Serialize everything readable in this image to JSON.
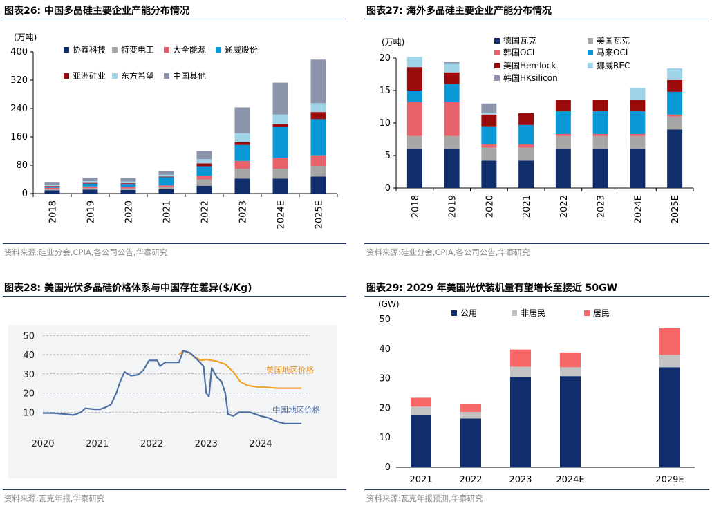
{
  "colors": {
    "navy": "#0f2e6b",
    "gray": "#a6a6a6",
    "salmon": "#e8626b",
    "blue": "#0a97d6",
    "darkred": "#9b0b0b",
    "lightblue": "#9fd4e8",
    "slate": "#8c94ac",
    "orange": "#f2a22a",
    "line_blue": "#4e6fa3"
  },
  "fig26": {
    "title": "图表26:  中国多晶硅主要企业产能分布情况",
    "source": "资料来源:硅业分会,CPIA,各公司公告,华泰研究",
    "chart_data": {
      "type": "bar",
      "stacked": true,
      "title": "中国多晶硅主要企业产能分布情况",
      "ylabel": "(万吨)",
      "ylim": [
        0,
        400
      ],
      "yticks": [
        "0",
        "80",
        "160",
        "240",
        "320",
        "400"
      ],
      "categories": [
        "2018",
        "2019",
        "2020",
        "2021",
        "2022",
        "2023",
        "2024E",
        "2025E"
      ],
      "series": [
        {
          "name": "协鑫科技",
          "color": "#0f2e6b",
          "values": [
            9,
            11,
            10,
            12,
            22,
            42,
            42,
            48
          ]
        },
        {
          "name": "特变电工",
          "color": "#a6a6a6",
          "values": [
            3,
            4,
            4,
            6,
            18,
            28,
            28,
            30
          ]
        },
        {
          "name": "大全能源",
          "color": "#e8626b",
          "values": [
            4,
            5,
            5,
            5,
            10,
            22,
            30,
            30
          ]
        },
        {
          "name": "通威股份",
          "color": "#0a97d6",
          "values": [
            3,
            8,
            8,
            23,
            27,
            45,
            88,
            102
          ]
        },
        {
          "name": "亚洲硅业",
          "color": "#9b0b0b",
          "values": [
            2,
            2,
            2,
            2,
            8,
            8,
            8,
            20
          ]
        },
        {
          "name": "东方希望",
          "color": "#9fd4e8",
          "values": [
            3,
            5,
            5,
            5,
            12,
            25,
            27,
            25
          ]
        },
        {
          "name": "中国其他",
          "color": "#8c94ac",
          "values": [
            7,
            10,
            10,
            10,
            23,
            73,
            90,
            123
          ]
        }
      ]
    }
  },
  "fig27": {
    "title": "图表27:  海外多晶硅主要企业产能分布情况",
    "source": "资料来源:硅业分会,CPIA,各公司公告,华泰研究",
    "chart_data": {
      "type": "bar",
      "stacked": true,
      "title": "海外多晶硅主要企业产能分布情况",
      "ylabel": "(万吨)",
      "ylim": [
        0,
        20
      ],
      "yticks": [
        "0",
        "5",
        "10",
        "15",
        "20"
      ],
      "categories": [
        "2018",
        "2019",
        "2020",
        "2021",
        "2022",
        "2023",
        "2024E",
        "2025E"
      ],
      "series": [
        {
          "name": "德国瓦克",
          "color": "#0f2e6b",
          "values": [
            6.0,
            6.0,
            4.2,
            4.2,
            6.0,
            6.0,
            6.0,
            9.0
          ]
        },
        {
          "name": "美国瓦克",
          "color": "#a6a6a6",
          "values": [
            2.0,
            2.0,
            2.0,
            2.0,
            2.0,
            2.0,
            2.0,
            2.0
          ]
        },
        {
          "name": "韩国OCI",
          "color": "#e8626b",
          "values": [
            5.2,
            5.2,
            0.5,
            0.5,
            0.3,
            0.3,
            0.3,
            0.3
          ]
        },
        {
          "name": "马来OCI",
          "color": "#0a97d6",
          "values": [
            1.8,
            2.8,
            2.8,
            3.0,
            3.5,
            3.5,
            3.5,
            3.5
          ]
        },
        {
          "name": "美国Hemlock",
          "color": "#9b0b0b",
          "values": [
            3.6,
            1.8,
            1.8,
            1.8,
            1.8,
            1.8,
            1.8,
            1.8
          ]
        },
        {
          "name": "挪威REC",
          "color": "#9fd4e8",
          "values": [
            1.6,
            1.4,
            0.3,
            0,
            0,
            0,
            1.8,
            1.8
          ]
        },
        {
          "name": "韩国HKsilicon",
          "color": "#8c94ac",
          "values": [
            0,
            0.2,
            1.4,
            0,
            0,
            0,
            0,
            0
          ]
        }
      ]
    }
  },
  "fig28": {
    "title": "图表28:  美国光伏多晶硅价格体系与中国存在差异($/Kg)",
    "source": "资料来源:瓦克年报,华泰研究",
    "chart_data": {
      "type": "line",
      "title": "美国光伏多晶硅价格体系与中国存在差异($/Kg)",
      "ylim": [
        0,
        50
      ],
      "yticks": [
        "10",
        "20",
        "30",
        "40",
        "50"
      ],
      "xlim": [
        2020,
        2024.9
      ],
      "xticks": [
        "2020",
        "2021",
        "2022",
        "2023",
        "2024"
      ],
      "series": [
        {
          "name": "美国地区价格",
          "color": "#f2a22a",
          "points": [
            [
              2022.5,
              40
            ],
            [
              2022.58,
              42
            ],
            [
              2022.68,
              41
            ],
            [
              2022.78,
              39
            ],
            [
              2022.9,
              37
            ],
            [
              2023.0,
              37.5
            ],
            [
              2023.1,
              37
            ],
            [
              2023.2,
              36.5
            ],
            [
              2023.35,
              35
            ],
            [
              2023.5,
              31
            ],
            [
              2023.62,
              26
            ],
            [
              2023.75,
              24
            ],
            [
              2023.95,
              23
            ],
            [
              2024.1,
              23
            ],
            [
              2024.3,
              22.5
            ],
            [
              2024.6,
              22.5
            ],
            [
              2024.75,
              22.5
            ]
          ]
        },
        {
          "name": "中国地区价格",
          "color": "#4e6fa3",
          "points": [
            [
              2020.0,
              9.5
            ],
            [
              2020.2,
              9.5
            ],
            [
              2020.4,
              9
            ],
            [
              2020.55,
              8.5
            ],
            [
              2020.62,
              9
            ],
            [
              2020.7,
              10
            ],
            [
              2020.78,
              12
            ],
            [
              2020.95,
              11.5
            ],
            [
              2021.05,
              11.5
            ],
            [
              2021.15,
              12.5
            ],
            [
              2021.25,
              14
            ],
            [
              2021.35,
              20
            ],
            [
              2021.42,
              26
            ],
            [
              2021.5,
              31
            ],
            [
              2021.55,
              30
            ],
            [
              2021.62,
              29
            ],
            [
              2021.75,
              29.5
            ],
            [
              2021.85,
              32
            ],
            [
              2021.95,
              37
            ],
            [
              2022.1,
              37
            ],
            [
              2022.15,
              34
            ],
            [
              2022.25,
              36
            ],
            [
              2022.4,
              36
            ],
            [
              2022.5,
              36
            ],
            [
              2022.58,
              42
            ],
            [
              2022.7,
              41
            ],
            [
              2022.85,
              37
            ],
            [
              2022.95,
              34
            ],
            [
              2023.0,
              20
            ],
            [
              2023.05,
              18
            ],
            [
              2023.1,
              33
            ],
            [
              2023.2,
              28
            ],
            [
              2023.28,
              26
            ],
            [
              2023.35,
              20
            ],
            [
              2023.4,
              9
            ],
            [
              2023.5,
              8
            ],
            [
              2023.6,
              10
            ],
            [
              2023.8,
              10
            ],
            [
              2024.0,
              8
            ],
            [
              2024.15,
              7
            ],
            [
              2024.3,
              5
            ],
            [
              2024.45,
              4
            ],
            [
              2024.75,
              4
            ]
          ]
        }
      ],
      "annotations": [
        "美国地区价格",
        "中国地区价格"
      ]
    }
  },
  "fig29": {
    "title": "图表29:  2029 年美国光伏装机量有望增长至接近 50GW",
    "source": "资料来源:瓦克年报预测,华泰研究",
    "chart_data": {
      "type": "bar",
      "stacked": true,
      "title": "2029 年美国光伏装机量有望增长至接近 50GW",
      "ylabel": "(GW)",
      "ylim": [
        0,
        50
      ],
      "yticks": [
        "0",
        "10",
        "20",
        "30",
        "40",
        "50"
      ],
      "categories": [
        "2021",
        "2022",
        "2023",
        "2024E",
        "",
        "2029E"
      ],
      "series": [
        {
          "name": "公用",
          "color": "#0f2e6b",
          "values": [
            17.8,
            16.5,
            30.5,
            30.8,
            null,
            33.8
          ]
        },
        {
          "name": "非居民",
          "color": "#c3c3c3",
          "values": [
            2.7,
            2.2,
            3.5,
            3.0,
            null,
            4.2
          ]
        },
        {
          "name": "居民",
          "color": "#f86868",
          "values": [
            3.0,
            2.8,
            5.8,
            5.0,
            null,
            9.0
          ]
        }
      ]
    }
  }
}
